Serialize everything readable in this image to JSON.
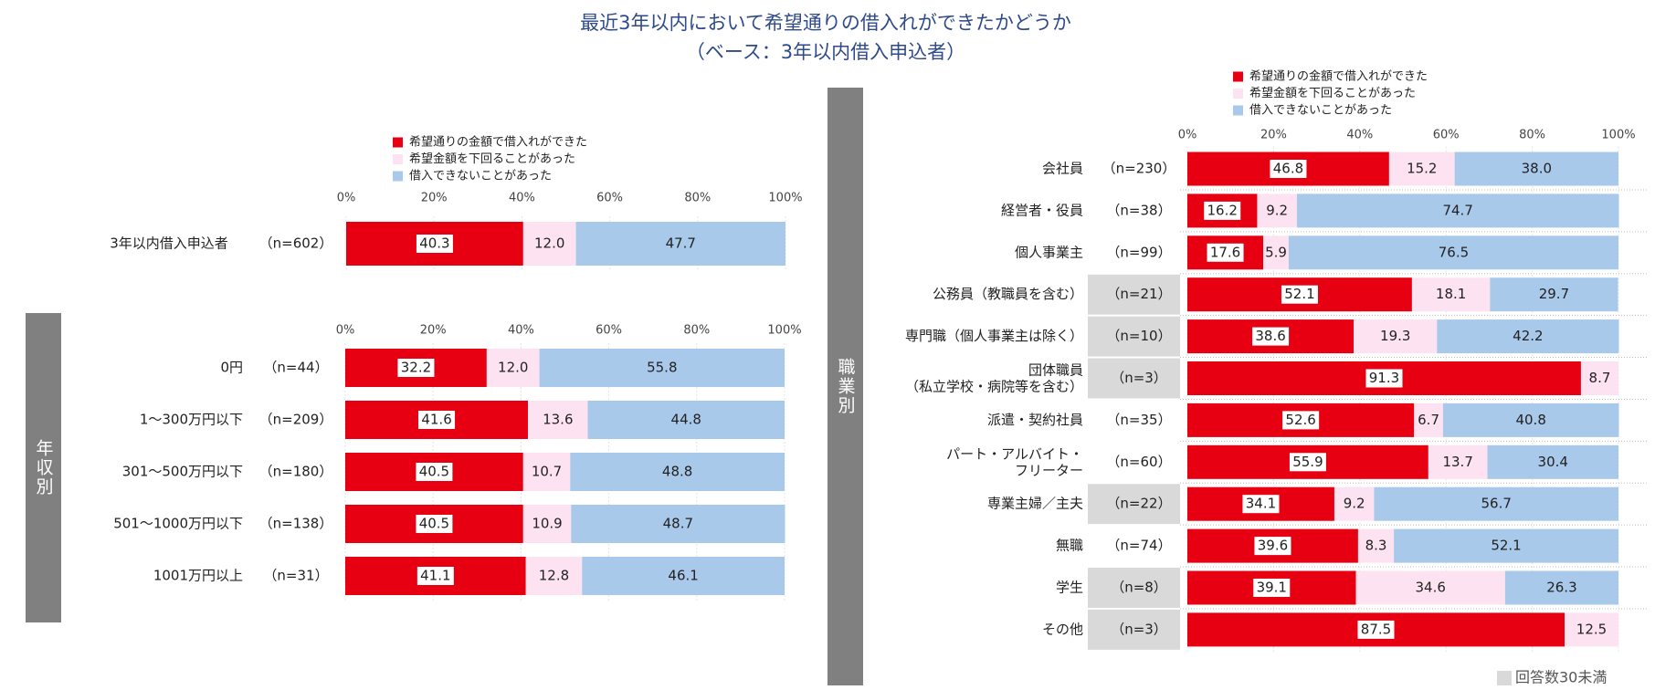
{
  "header": {
    "title": "最近3年以内において希望通りの借入れができたかどうか",
    "subtitle": "（ベース：3年以内借入申込者）"
  },
  "chart_data": [
    {
      "type": "stacked_bar_h",
      "categories": [
        "3年以内借入申込者"
      ],
      "n_labels": [
        "（n=602）"
      ],
      "series": [
        {
          "name": "希望通りの金額で借入れができた",
          "color": "#e60012",
          "values": [
            40.3
          ],
          "value_labels": [
            "40.3"
          ]
        },
        {
          "name": "希望金額を下回ることがあった",
          "color": "#fde3f1",
          "values": [
            12.0
          ],
          "value_labels": [
            "12.0"
          ]
        },
        {
          "name": "借入できないことがあった",
          "color": "#a9c9eb",
          "values": [
            47.7
          ],
          "value_labels": [
            "47.7"
          ]
        }
      ],
      "xlim": [
        0,
        100
      ],
      "xticks": [
        {
          "value": 0,
          "label": "0%"
        },
        {
          "value": 20,
          "label": "20%"
        },
        {
          "value": 40,
          "label": "40%"
        },
        {
          "value": 60,
          "label": "60%"
        },
        {
          "value": 80,
          "label": "80%"
        },
        {
          "value": 100,
          "label": "100%"
        }
      ],
      "legend": true
    },
    {
      "type": "stacked_bar_h",
      "group_label": "年収別",
      "categories": [
        "0円",
        "1～300万円以下",
        "301～500万円以下",
        "501～1000万円以下",
        "1001万円以上"
      ],
      "n_labels": [
        "（n=44）",
        "（n=209）",
        "（n=180）",
        "（n=138）",
        "（n=31）"
      ],
      "series": [
        {
          "color": "#e60012",
          "values": [
            32.2,
            41.6,
            40.5,
            40.5,
            41.1
          ],
          "value_labels": [
            "32.2",
            "41.6",
            "40.5",
            "40.5",
            "41.1"
          ]
        },
        {
          "color": "#fde3f1",
          "values": [
            12.0,
            13.6,
            10.7,
            10.9,
            12.8
          ],
          "value_labels": [
            "12.0",
            "13.6",
            "10.7",
            "10.9",
            "12.8"
          ]
        },
        {
          "color": "#a9c9eb",
          "values": [
            55.8,
            44.8,
            48.8,
            48.7,
            46.1
          ],
          "value_labels": [
            "55.8",
            "44.8",
            "48.8",
            "48.7",
            "46.1"
          ]
        }
      ],
      "xlim": [
        0,
        100
      ],
      "xticks": [
        {
          "value": 0,
          "label": "0%"
        },
        {
          "value": 20,
          "label": "20%"
        },
        {
          "value": 40,
          "label": "40%"
        },
        {
          "value": 60,
          "label": "60%"
        },
        {
          "value": 80,
          "label": "80%"
        },
        {
          "value": 100,
          "label": "100%"
        }
      ],
      "legend": false
    },
    {
      "type": "stacked_bar_h",
      "group_label": "職業別",
      "categories": [
        "会社員",
        "経営者・役員",
        "個人事業主",
        "公務員（教職員を含む）",
        "専門職（個人事業主は除く）",
        "団体職員\n（私立学校・病院等を含む）",
        "派遣・契約社員",
        "パート・アルバイト・\nフリーター",
        "専業主婦／主夫",
        "無職",
        "学生",
        "その他"
      ],
      "n_labels": [
        "（n=230）",
        "（n=38）",
        "（n=99）",
        "（n=21）",
        "（n=10）",
        "（n=3）",
        "（n=35）",
        "（n=60）",
        "（n=22）",
        "（n=74）",
        "（n=8）",
        "（n=3）"
      ],
      "low_n": [
        false,
        false,
        false,
        true,
        true,
        true,
        false,
        false,
        true,
        false,
        true,
        true
      ],
      "low_n_color": "#d9d9d9",
      "note": "回答数30未満",
      "series": [
        {
          "name": "希望通りの金額で借入れができた",
          "color": "#e60012",
          "values": [
            46.8,
            16.2,
            17.6,
            52.1,
            38.6,
            91.3,
            52.6,
            55.9,
            34.1,
            39.6,
            39.1,
            87.5
          ],
          "value_labels": [
            "46.8",
            "16.2",
            "17.6",
            "52.1",
            "38.6",
            "91.3",
            "52.6",
            "55.9",
            "34.1",
            "39.6",
            "39.1",
            "87.5"
          ]
        },
        {
          "name": "希望金額を下回ることがあった",
          "color": "#fde3f1",
          "values": [
            15.2,
            9.2,
            5.9,
            18.1,
            19.3,
            8.7,
            6.7,
            13.7,
            9.2,
            8.3,
            34.6,
            12.5
          ],
          "value_labels": [
            "15.2",
            "9.2",
            "5.9",
            "18.1",
            "19.3",
            "8.7",
            "6.7",
            "13.7",
            "9.2",
            "8.3",
            "34.6",
            "12.5"
          ]
        },
        {
          "name": "借入できないことがあった",
          "color": "#a9c9eb",
          "values": [
            38.0,
            74.7,
            76.5,
            29.7,
            42.2,
            null,
            40.8,
            30.4,
            56.7,
            52.1,
            26.3,
            null
          ],
          "value_labels": [
            "38.0",
            "74.7",
            "76.5",
            "29.7",
            "42.2",
            null,
            "40.8",
            "30.4",
            "56.7",
            "52.1",
            "26.3",
            null
          ]
        }
      ],
      "xlim": [
        0,
        100
      ],
      "xticks": [
        {
          "value": 0,
          "label": "0%"
        },
        {
          "value": 20,
          "label": "20%"
        },
        {
          "value": 40,
          "label": "40%"
        },
        {
          "value": 60,
          "label": "60%"
        },
        {
          "value": 80,
          "label": "80%"
        },
        {
          "value": 100,
          "label": "100%"
        }
      ],
      "legend": true
    }
  ]
}
